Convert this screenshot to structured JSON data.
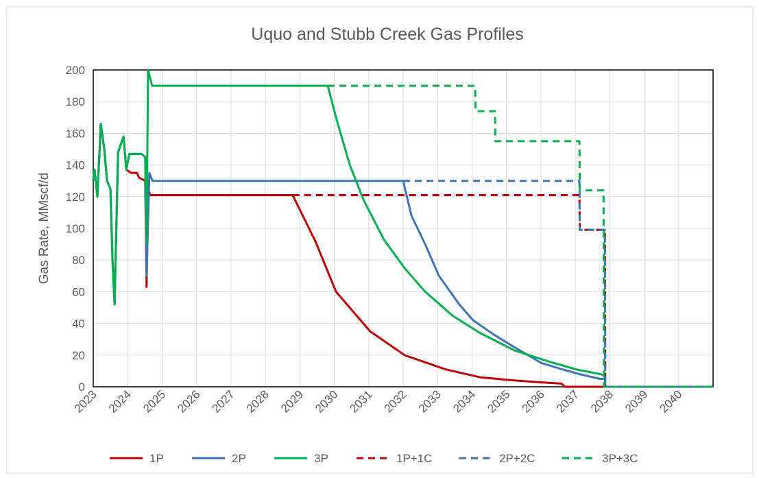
{
  "chart_data": {
    "type": "line",
    "title": "Uquo and Stubb Creek Gas Profiles",
    "y_label": "Gas Rate, MMscf/d",
    "xlim": [
      2023,
      2041
    ],
    "xticks": [
      2023,
      2024,
      2025,
      2026,
      2027,
      2028,
      2029,
      2030,
      2031,
      2032,
      2033,
      2034,
      2035,
      2036,
      2037,
      2038,
      2039,
      2040
    ],
    "ylim": [
      0,
      200
    ],
    "yticks": [
      0,
      20,
      40,
      60,
      80,
      100,
      120,
      140,
      160,
      180,
      200
    ],
    "grid": true,
    "legend": "bottom",
    "series": [
      {
        "name": "1P",
        "color": "#c00000",
        "dash": false,
        "x": [
          2023,
          2023.04,
          2023.12,
          2023.22,
          2023.32,
          2023.4,
          2023.5,
          2023.56,
          2023.62,
          2023.72,
          2023.88,
          2023.96,
          2024.1,
          2024.27,
          2024.33,
          2024.51,
          2024.55,
          2024.6,
          2024.65,
          2028.79,
          2029.45,
          2030.05,
          2031.04,
          2032.04,
          2033.23,
          2034.23,
          2035.23,
          2036.22,
          2036.6,
          2036.7,
          2041
        ],
        "values": [
          130,
          137,
          120,
          166,
          150,
          130,
          125,
          80,
          52,
          148,
          158,
          137,
          135,
          135,
          132,
          130,
          63,
          125,
          121,
          121,
          92,
          60,
          35,
          20,
          11,
          6,
          4,
          2.5,
          2,
          0,
          0
        ]
      },
      {
        "name": "2P",
        "color": "#3e75b6",
        "dash": false,
        "x": [
          2023,
          2023.04,
          2023.12,
          2023.22,
          2023.32,
          2023.4,
          2023.5,
          2023.56,
          2023.62,
          2023.72,
          2023.88,
          2023.96,
          2024.05,
          2024.4,
          2024.51,
          2024.55,
          2024.63,
          2024.72,
          2032.0,
          2032.24,
          2032.64,
          2033.04,
          2033.63,
          2034.03,
          2034.63,
          2035.23,
          2036.02,
          2036.62,
          2037.12,
          2037.72,
          2037.86,
          2037.87,
          2041
        ],
        "values": [
          130,
          137,
          120,
          166,
          150,
          130,
          125,
          80,
          52,
          148,
          158,
          137,
          147,
          147,
          145,
          70,
          135,
          130,
          130,
          108,
          90,
          70,
          52,
          42,
          33,
          25,
          15,
          11,
          8,
          5,
          5,
          0,
          0
        ]
      },
      {
        "name": "3P",
        "color": "#00b050",
        "dash": false,
        "x": [
          2023,
          2023.04,
          2023.12,
          2023.22,
          2023.32,
          2023.4,
          2023.5,
          2023.56,
          2023.62,
          2023.72,
          2023.88,
          2023.96,
          2024.05,
          2024.4,
          2024.51,
          2024.55,
          2024.59,
          2024.71,
          2029.81,
          2030.05,
          2030.45,
          2030.85,
          2031.44,
          2032.04,
          2032.64,
          2033.43,
          2034.23,
          2035.23,
          2036.22,
          2037.02,
          2037.72,
          2037.86,
          2037.87,
          2041
        ],
        "values": [
          130,
          137,
          120,
          166,
          150,
          130,
          125,
          80,
          52,
          148,
          158,
          137,
          147,
          147,
          145,
          90,
          200,
          190,
          190,
          170,
          140,
          118,
          93,
          75,
          60,
          45,
          34,
          23,
          16,
          11,
          8,
          7,
          0,
          0
        ]
      },
      {
        "name": "1P+1C",
        "color": "#c00000",
        "dash": true,
        "x": [
          2028.79,
          2037.12,
          2037.13,
          2037.86,
          2037.87,
          2041
        ],
        "values": [
          121,
          121,
          99,
          99,
          0,
          0
        ]
      },
      {
        "name": "2P+2C",
        "color": "#3e75b6",
        "dash": true,
        "x": [
          2032.0,
          2037.12,
          2037.13,
          2037.86,
          2037.87,
          2041
        ],
        "values": [
          130,
          130,
          99,
          99,
          0,
          0
        ]
      },
      {
        "name": "3P+3C",
        "color": "#00b050",
        "dash": true,
        "x": [
          2029.81,
          2034.09,
          2034.1,
          2034.67,
          2034.68,
          2037.12,
          2037.13,
          2037.82,
          2037.83,
          2041
        ],
        "values": [
          190,
          190,
          174,
          174,
          155,
          155,
          124,
          124,
          0,
          0
        ]
      }
    ]
  }
}
